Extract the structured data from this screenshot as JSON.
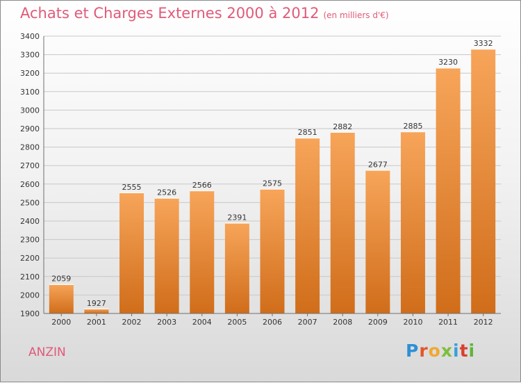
{
  "header": {
    "title": "Achats et Charges Externes 2000 à 2012",
    "unit": "(en milliers d'€)"
  },
  "footer": {
    "place": "ANZIN",
    "logo": "Proxiti"
  },
  "colors": {
    "title": "#e05a78",
    "bar_top": "#f7a55a",
    "bar_bottom": "#d06d1a",
    "grid": "#c8c8c8",
    "axis": "#6e6e6e"
  },
  "chart_data": {
    "type": "bar",
    "categories": [
      "2000",
      "2001",
      "2002",
      "2003",
      "2004",
      "2005",
      "2006",
      "2007",
      "2008",
      "2009",
      "2010",
      "2011",
      "2012"
    ],
    "values": [
      2059,
      1927,
      2555,
      2526,
      2566,
      2391,
      2575,
      2851,
      2882,
      2677,
      2885,
      3230,
      3332
    ],
    "title": "Achats et Charges Externes 2000 à 2012",
    "xlabel": "",
    "ylabel": "",
    "ylim": [
      1900,
      3400
    ],
    "yticks": [
      1900,
      2000,
      2100,
      2200,
      2300,
      2400,
      2500,
      2600,
      2700,
      2800,
      2900,
      3000,
      3100,
      3200,
      3300,
      3400
    ],
    "grid": true,
    "data_labels": true
  }
}
